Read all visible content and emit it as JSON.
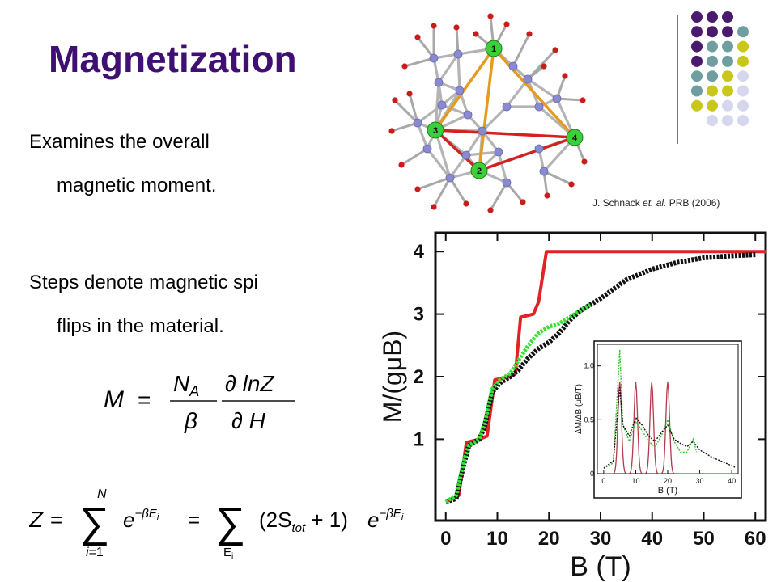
{
  "slide": {
    "title": "Magnetization",
    "bullet1_line1": "Examines  the overall",
    "bullet1_line2": "magnetic moment.",
    "bullet2_line1": "Steps denote magnetic spi",
    "bullet2_line2": "flips in the material.",
    "citation_author": "J. Schnack ",
    "citation_etal": "et. al.",
    "citation_rest": " PRB (2006)",
    "palette": {
      "purple": "#4a1a6e",
      "teal": "#6f9ea0",
      "olive": "#c9c71a",
      "lavender": "#d6d6ee"
    }
  },
  "molecule": {
    "node_labels": [
      "1",
      "2",
      "3",
      "4"
    ],
    "colors": {
      "node": "#3ccf3c",
      "edge_red": "#d42020",
      "edge_orange": "#e59a20",
      "atom_blue": "#8a8ad0",
      "atom_red": "#cc1b1b"
    }
  },
  "equations": {
    "magnetization": "M = (N_A / β) · ∂ lnZ / ∂ H",
    "partition": "Z = Σ_{i=1}^{N} e^{−βE_i} = Σ_{E_i} (2S_tot + 1) e^{−βE_i}"
  },
  "chart_data": [
    {
      "type": "line",
      "title": "",
      "xlabel": "B (T)",
      "ylabel": "M/(gμB)",
      "xlim": [
        -2,
        62
      ],
      "ylim": [
        -0.3,
        4.3
      ],
      "xticks": [
        "0",
        "10",
        "20",
        "30",
        "40",
        "50",
        "60"
      ],
      "yticks": [
        "1",
        "2",
        "3",
        "4"
      ],
      "series": [
        {
          "color": "#e02424",
          "points": [
            [
              0,
              0
            ],
            [
              2.5,
              0.1
            ],
            [
              4,
              0.95
            ],
            [
              6.5,
              1.0
            ],
            [
              8,
              1.05
            ],
            [
              9.5,
              1.95
            ],
            [
              12.5,
              2.0
            ],
            [
              13.5,
              2.05
            ],
            [
              14.5,
              2.95
            ],
            [
              17,
              3.0
            ],
            [
              18,
              3.2
            ],
            [
              19.5,
              4.0
            ],
            [
              62,
              4.0
            ]
          ]
        },
        {
          "color": "#111111",
          "points": [
            [
              0,
              0
            ],
            [
              2,
              0.05
            ],
            [
              3.5,
              0.6
            ],
            [
              4.5,
              0.9
            ],
            [
              6.5,
              1.0
            ],
            [
              7.5,
              1.2
            ],
            [
              9,
              1.75
            ],
            [
              10.5,
              1.9
            ],
            [
              12.5,
              2.0
            ],
            [
              14,
              2.1
            ],
            [
              16,
              2.3
            ],
            [
              18,
              2.45
            ],
            [
              20,
              2.55
            ],
            [
              22,
              2.7
            ],
            [
              24,
              2.9
            ],
            [
              26,
              3.05
            ],
            [
              28,
              3.15
            ],
            [
              30,
              3.25
            ],
            [
              35,
              3.55
            ],
            [
              40,
              3.72
            ],
            [
              45,
              3.83
            ],
            [
              50,
              3.9
            ],
            [
              55,
              3.93
            ],
            [
              60,
              3.95
            ]
          ]
        },
        {
          "color": "#37e237",
          "points": [
            [
              0,
              0
            ],
            [
              2,
              0.1
            ],
            [
              3.5,
              0.65
            ],
            [
              4.5,
              0.9
            ],
            [
              6.5,
              1.0
            ],
            [
              7.5,
              1.25
            ],
            [
              9,
              1.8
            ],
            [
              10.5,
              1.95
            ],
            [
              12.5,
              2.05
            ],
            [
              14,
              2.25
            ],
            [
              16,
              2.5
            ],
            [
              18,
              2.7
            ],
            [
              20,
              2.8
            ],
            [
              22,
              2.85
            ],
            [
              24,
              2.95
            ],
            [
              26,
              3.05
            ],
            [
              28,
              3.15
            ]
          ]
        }
      ]
    },
    {
      "type": "line",
      "title": "",
      "xlabel": "B (T)",
      "ylabel": "ΔM/ΔB (μB/T)",
      "xlim": [
        -2,
        42
      ],
      "ylim": [
        0,
        1.2
      ],
      "xticks": [
        "0",
        "10",
        "20",
        "30",
        "40"
      ],
      "yticks": [
        "0",
        "0.5",
        "1.0"
      ],
      "series": [
        {
          "color": "#b23a4a",
          "peaks_at": [
            5,
            10,
            15,
            20
          ],
          "peak_height": 0.85
        },
        {
          "color": "#33c633",
          "points": [
            [
              0,
              0.05
            ],
            [
              3,
              0.1
            ],
            [
              5,
              1.15
            ],
            [
              6,
              0.45
            ],
            [
              8,
              0.3
            ],
            [
              10,
              0.48
            ],
            [
              12,
              0.4
            ],
            [
              14,
              0.3
            ],
            [
              16,
              0.25
            ],
            [
              18,
              0.35
            ],
            [
              20,
              0.5
            ],
            [
              22,
              0.3
            ],
            [
              24,
              0.2
            ],
            [
              26,
              0.2
            ],
            [
              28,
              0.32
            ],
            [
              29,
              0.2
            ]
          ]
        },
        {
          "color": "#111111",
          "points": [
            [
              0,
              0.05
            ],
            [
              3,
              0.12
            ],
            [
              5,
              0.8
            ],
            [
              6,
              0.45
            ],
            [
              8,
              0.35
            ],
            [
              10,
              0.52
            ],
            [
              12,
              0.45
            ],
            [
              14,
              0.35
            ],
            [
              16,
              0.3
            ],
            [
              18,
              0.38
            ],
            [
              20,
              0.45
            ],
            [
              22,
              0.32
            ],
            [
              24,
              0.28
            ],
            [
              26,
              0.25
            ],
            [
              28,
              0.3
            ],
            [
              30,
              0.22
            ],
            [
              34,
              0.15
            ],
            [
              38,
              0.1
            ],
            [
              41,
              0.06
            ]
          ]
        }
      ]
    }
  ]
}
